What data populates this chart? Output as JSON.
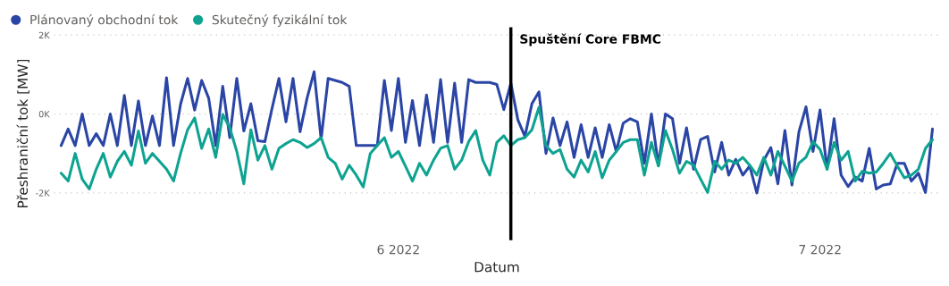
{
  "chart_data": {
    "type": "line",
    "xlabel": "Datum",
    "ylabel": "Přeshraniční tok [MW]",
    "x": [
      "2022-05-08T00:00",
      "2022-05-08T12:00",
      "2022-05-09T00:00",
      "2022-05-09T12:00",
      "2022-05-10T00:00",
      "2022-05-10T12:00",
      "2022-05-11T00:00",
      "2022-05-11T12:00",
      "2022-05-12T00:00",
      "2022-05-12T12:00",
      "2022-05-13T00:00",
      "2022-05-13T12:00",
      "2022-05-14T00:00",
      "2022-05-14T12:00",
      "2022-05-15T00:00",
      "2022-05-15T12:00",
      "2022-05-16T00:00",
      "2022-05-16T12:00",
      "2022-05-17T00:00",
      "2022-05-17T12:00",
      "2022-05-18T00:00",
      "2022-05-18T12:00",
      "2022-05-19T00:00",
      "2022-05-19T12:00",
      "2022-05-20T00:00",
      "2022-05-20T12:00",
      "2022-05-21T00:00",
      "2022-05-21T12:00",
      "2022-05-22T00:00",
      "2022-05-22T12:00",
      "2022-05-23T00:00",
      "2022-05-23T12:00",
      "2022-05-24T00:00",
      "2022-05-24T12:00",
      "2022-05-25T00:00",
      "2022-05-25T12:00",
      "2022-05-26T00:00",
      "2022-05-26T12:00",
      "2022-05-27T00:00",
      "2022-05-27T12:00",
      "2022-05-28T00:00",
      "2022-05-28T12:00",
      "2022-05-29T00:00",
      "2022-05-29T12:00",
      "2022-05-30T00:00",
      "2022-05-30T12:00",
      "2022-05-31T00:00",
      "2022-05-31T12:00",
      "2022-06-01T00:00",
      "2022-06-01T12:00",
      "2022-06-02T00:00",
      "2022-06-02T12:00",
      "2022-06-03T00:00",
      "2022-06-03T12:00",
      "2022-06-04T00:00",
      "2022-06-04T12:00",
      "2022-06-05T00:00",
      "2022-06-05T12:00",
      "2022-06-06T00:00",
      "2022-06-06T12:00",
      "2022-06-07T00:00",
      "2022-06-07T12:00",
      "2022-06-08T00:00",
      "2022-06-08T12:00",
      "2022-06-09T00:00",
      "2022-06-09T12:00",
      "2022-06-10T00:00",
      "2022-06-10T12:00",
      "2022-06-11T00:00",
      "2022-06-11T12:00",
      "2022-06-12T00:00",
      "2022-06-12T12:00",
      "2022-06-13T00:00",
      "2022-06-13T12:00",
      "2022-06-14T00:00",
      "2022-06-14T12:00",
      "2022-06-15T00:00",
      "2022-06-15T12:00",
      "2022-06-16T00:00",
      "2022-06-16T12:00",
      "2022-06-17T00:00",
      "2022-06-17T12:00",
      "2022-06-18T00:00",
      "2022-06-18T12:00",
      "2022-06-19T00:00",
      "2022-06-19T12:00",
      "2022-06-20T00:00",
      "2022-06-20T12:00",
      "2022-06-21T00:00",
      "2022-06-21T12:00",
      "2022-06-22T00:00",
      "2022-06-22T12:00",
      "2022-06-23T00:00",
      "2022-06-23T12:00",
      "2022-06-24T00:00",
      "2022-06-24T12:00",
      "2022-06-25T00:00",
      "2022-06-25T12:00",
      "2022-06-26T00:00",
      "2022-06-26T12:00",
      "2022-06-27T00:00",
      "2022-06-27T12:00",
      "2022-06-28T00:00",
      "2022-06-28T12:00",
      "2022-06-29T00:00",
      "2022-06-29T12:00",
      "2022-06-30T00:00",
      "2022-06-30T12:00",
      "2022-07-01T00:00",
      "2022-07-01T12:00",
      "2022-07-02T00:00",
      "2022-07-02T12:00",
      "2022-07-03T00:00",
      "2022-07-03T12:00",
      "2022-07-04T00:00",
      "2022-07-04T12:00",
      "2022-07-05T00:00",
      "2022-07-05T12:00",
      "2022-07-06T00:00",
      "2022-07-06T12:00",
      "2022-07-07T00:00",
      "2022-07-07T12:00",
      "2022-07-08T00:00",
      "2022-07-08T12:00",
      "2022-07-09T00:00"
    ],
    "series": [
      {
        "name": "Plánovaný obchodní tok",
        "color": "#2a45a5",
        "values": [
          -800,
          -380,
          -800,
          0,
          -800,
          -500,
          -800,
          0,
          -800,
          470,
          -800,
          330,
          -800,
          -50,
          -800,
          920,
          -800,
          250,
          900,
          100,
          850,
          400,
          -800,
          700,
          -600,
          900,
          -430,
          260,
          -680,
          -700,
          130,
          900,
          -200,
          900,
          -450,
          400,
          1070,
          -640,
          900,
          850,
          800,
          700,
          -800,
          -800,
          -800,
          -800,
          850,
          -420,
          900,
          -720,
          340,
          -800,
          480,
          -720,
          870,
          -720,
          780,
          -720,
          870,
          800,
          800,
          800,
          750,
          110,
          780,
          -150,
          -570,
          260,
          560,
          -1000,
          -100,
          -800,
          -200,
          -1100,
          -270,
          -1100,
          -350,
          -1100,
          -270,
          -950,
          -230,
          -120,
          -200,
          -1250,
          0,
          -1300,
          0,
          -120,
          -1250,
          -350,
          -1400,
          -650,
          -570,
          -1470,
          -720,
          -1550,
          -1150,
          -1550,
          -1320,
          -2000,
          -1170,
          -850,
          -1770,
          -420,
          -1800,
          -450,
          180,
          -950,
          100,
          -1400,
          -120,
          -1550,
          -1840,
          -1600,
          -1700,
          -870,
          -1900,
          -1800,
          -1770,
          -1250,
          -1250,
          -1700,
          -1500,
          -1990,
          -380
        ]
      },
      {
        "name": "Skutečný fyzikální tok",
        "color": "#0ea391",
        "values": [
          -1500,
          -1700,
          -1000,
          -1650,
          -1900,
          -1400,
          -1000,
          -1600,
          -1200,
          -950,
          -1300,
          -430,
          -1250,
          -1000,
          -1200,
          -1400,
          -1700,
          -1000,
          -400,
          -100,
          -870,
          -380,
          -1100,
          -10,
          -350,
          -950,
          -1770,
          -400,
          -1170,
          -800,
          -1400,
          -870,
          -750,
          -650,
          -720,
          -850,
          -750,
          -600,
          -1100,
          -1250,
          -1650,
          -1300,
          -1550,
          -1850,
          -1000,
          -800,
          -600,
          -1100,
          -950,
          -1320,
          -1700,
          -1250,
          -1550,
          -1170,
          -870,
          -800,
          -1400,
          -1170,
          -700,
          -420,
          -1170,
          -1550,
          -720,
          -550,
          -800,
          -650,
          -600,
          -400,
          170,
          -800,
          -1000,
          -900,
          -1400,
          -1600,
          -1170,
          -1470,
          -950,
          -1620,
          -1170,
          -950,
          -720,
          -650,
          -650,
          -1550,
          -720,
          -1320,
          -420,
          -900,
          -1500,
          -1200,
          -1300,
          -1650,
          -1990,
          -1200,
          -1400,
          -1170,
          -1250,
          -1100,
          -1300,
          -1550,
          -1100,
          -1550,
          -950,
          -1320,
          -1700,
          -1245,
          -1095,
          -700,
          -900,
          -1400,
          -720,
          -1170,
          -950,
          -1700,
          -1450,
          -1500,
          -1470,
          -1250,
          -1000,
          -1320,
          -1620,
          -1550,
          -1400,
          -870,
          -650
        ]
      }
    ],
    "xlim": [
      "2022-05-07T12:00",
      "2022-07-09T12:00"
    ],
    "xticks": [
      {
        "value": "2022-06-01",
        "label": "6 2022"
      },
      {
        "value": "2022-07-01",
        "label": "7 2022"
      }
    ],
    "ylim": [
      -3200,
      2200
    ],
    "yticks": [
      {
        "value": -2000,
        "label": "-2K"
      },
      {
        "value": 0,
        "label": "0K"
      },
      {
        "value": 2000,
        "label": "2K"
      }
    ],
    "ref_lines": [
      {
        "axis": "x",
        "value": "2022-06-09",
        "label": "Spuštění Core FBMC",
        "color": "#000000"
      }
    ],
    "grid": "y",
    "legend": "top left",
    "marker": "none",
    "line_style": "solid"
  }
}
